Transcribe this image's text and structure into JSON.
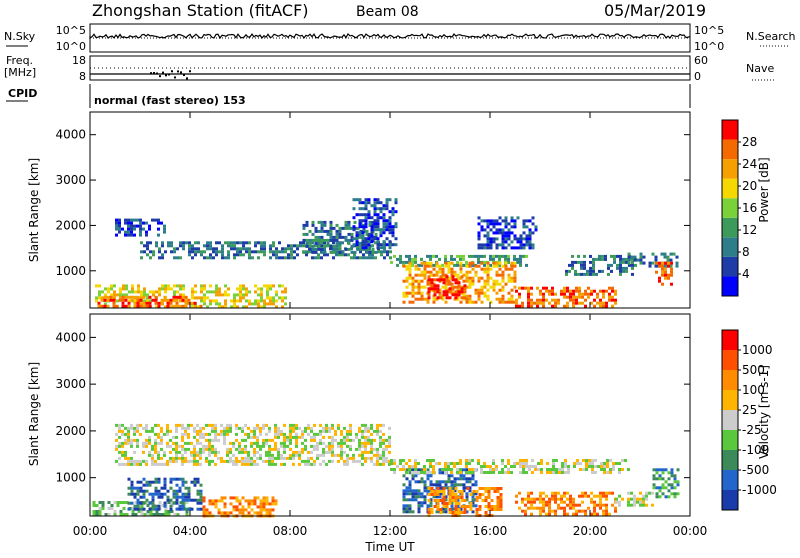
{
  "header": {
    "station": "Zhongshan Station (fitACF)",
    "beam": "Beam 08",
    "date": "05/Mar/2019"
  },
  "nsky_panel": {
    "left_label": "N.Sky",
    "left_ticks": [
      "10^5",
      "10^0"
    ],
    "right_label": "N.Search",
    "right_ticks": [
      "10^5",
      "10^0"
    ]
  },
  "freq_panel": {
    "left_label_line1": "Freq.",
    "left_label_line2": "[MHz]",
    "left_ticks": [
      "18",
      "8"
    ],
    "right_label": "Nave",
    "right_ticks": [
      "60",
      "0"
    ]
  },
  "cpid_panel": {
    "label": "CPID",
    "mode_text": "normal (fast stereo) 153"
  },
  "power_panel": {
    "ylabel": "Slant Range [km]",
    "yticks": [
      "4000",
      "3000",
      "2000",
      "1000"
    ],
    "colorbar_label": "Power [dB]",
    "colorbar_ticks": [
      "28",
      "24",
      "20",
      "16",
      "12",
      "8",
      "4"
    ],
    "colors": [
      "#0000ff",
      "#1e3ca8",
      "#2e7d8a",
      "#3c9a5a",
      "#7ad13a",
      "#f5d800",
      "#f5a000",
      "#f56a00",
      "#ff0000"
    ]
  },
  "velocity_panel": {
    "ylabel": "Slant Range [km]",
    "yticks": [
      "4000",
      "3000",
      "2000",
      "1000"
    ],
    "colorbar_label": "Velocity [m s-1]",
    "colorbar_ticks": [
      "1000",
      "500",
      "100",
      "25",
      "-25",
      "-100",
      "-500",
      "-1000"
    ],
    "colors": [
      "#1a3caa",
      "#2266cc",
      "#3c8a5a",
      "#5ac83c",
      "#cccccc",
      "#ffb400",
      "#ff8c00",
      "#ff5000",
      "#ff0000"
    ]
  },
  "xaxis": {
    "ticks": [
      "00:00",
      "04:00",
      "08:00",
      "12:00",
      "16:00",
      "20:00",
      "00:00"
    ],
    "label": "Time UT"
  },
  "chart_data": {
    "type": "heatmap",
    "x_range_hours": [
      0,
      24
    ],
    "y_range_km": [
      180,
      4500
    ],
    "grid": false,
    "power_regions": [
      {
        "t0": 0.2,
        "t1": 7.8,
        "r0": 200,
        "r1": 700,
        "level": 5
      },
      {
        "t0": 0.3,
        "t1": 4.5,
        "r0": 200,
        "r1": 450,
        "level": 7
      },
      {
        "t0": 1.0,
        "t1": 3.0,
        "r0": 1800,
        "r1": 2150,
        "level": 1
      },
      {
        "t0": 2.0,
        "t1": 12.0,
        "r0": 1300,
        "r1": 1650,
        "level": 2
      },
      {
        "t0": 8.5,
        "t1": 11.5,
        "r0": 1400,
        "r1": 2100,
        "level": 2
      },
      {
        "t0": 10.5,
        "t1": 12.2,
        "r0": 1500,
        "r1": 2600,
        "level": 1
      },
      {
        "t0": 12.0,
        "t1": 17.5,
        "r0": 1150,
        "r1": 1350,
        "level": 3
      },
      {
        "t0": 12.5,
        "t1": 17.0,
        "r0": 300,
        "r1": 1200,
        "level": 6
      },
      {
        "t0": 13.5,
        "t1": 15.0,
        "r0": 400,
        "r1": 900,
        "level": 8
      },
      {
        "t0": 15.5,
        "t1": 17.8,
        "r0": 1500,
        "r1": 2200,
        "level": 1
      },
      {
        "t0": 17.0,
        "t1": 21.0,
        "r0": 200,
        "r1": 650,
        "level": 7
      },
      {
        "t0": 19.0,
        "t1": 21.8,
        "r0": 900,
        "r1": 1350,
        "level": 2
      },
      {
        "t0": 21.5,
        "t1": 23.5,
        "r0": 1100,
        "r1": 1400,
        "level": 2
      },
      {
        "t0": 22.6,
        "t1": 23.3,
        "r0": 700,
        "r1": 1200,
        "level": 7
      }
    ],
    "velocity_regions": [
      {
        "t0": 0.1,
        "t1": 4.0,
        "r0": 200,
        "r1": 500,
        "level": 3
      },
      {
        "t0": 1.5,
        "t1": 4.5,
        "r0": 300,
        "r1": 1000,
        "level": 1
      },
      {
        "t0": 1.0,
        "t1": 12.0,
        "r0": 1300,
        "r1": 2150,
        "level": 4
      },
      {
        "t0": 4.5,
        "t1": 7.5,
        "r0": 200,
        "r1": 600,
        "level": 6
      },
      {
        "t0": 12.5,
        "t1": 15.5,
        "r0": 300,
        "r1": 1200,
        "level": 1
      },
      {
        "t0": 13.5,
        "t1": 16.5,
        "r0": 200,
        "r1": 800,
        "level": 6
      },
      {
        "t0": 12.0,
        "t1": 21.5,
        "r0": 1100,
        "r1": 1400,
        "level": 4
      },
      {
        "t0": 17.0,
        "t1": 21.0,
        "r0": 200,
        "r1": 700,
        "level": 6
      },
      {
        "t0": 21.0,
        "t1": 22.5,
        "r0": 400,
        "r1": 700,
        "level": 4
      },
      {
        "t0": 22.5,
        "t1": 23.5,
        "r0": 600,
        "r1": 1200,
        "level": 2
      }
    ]
  }
}
